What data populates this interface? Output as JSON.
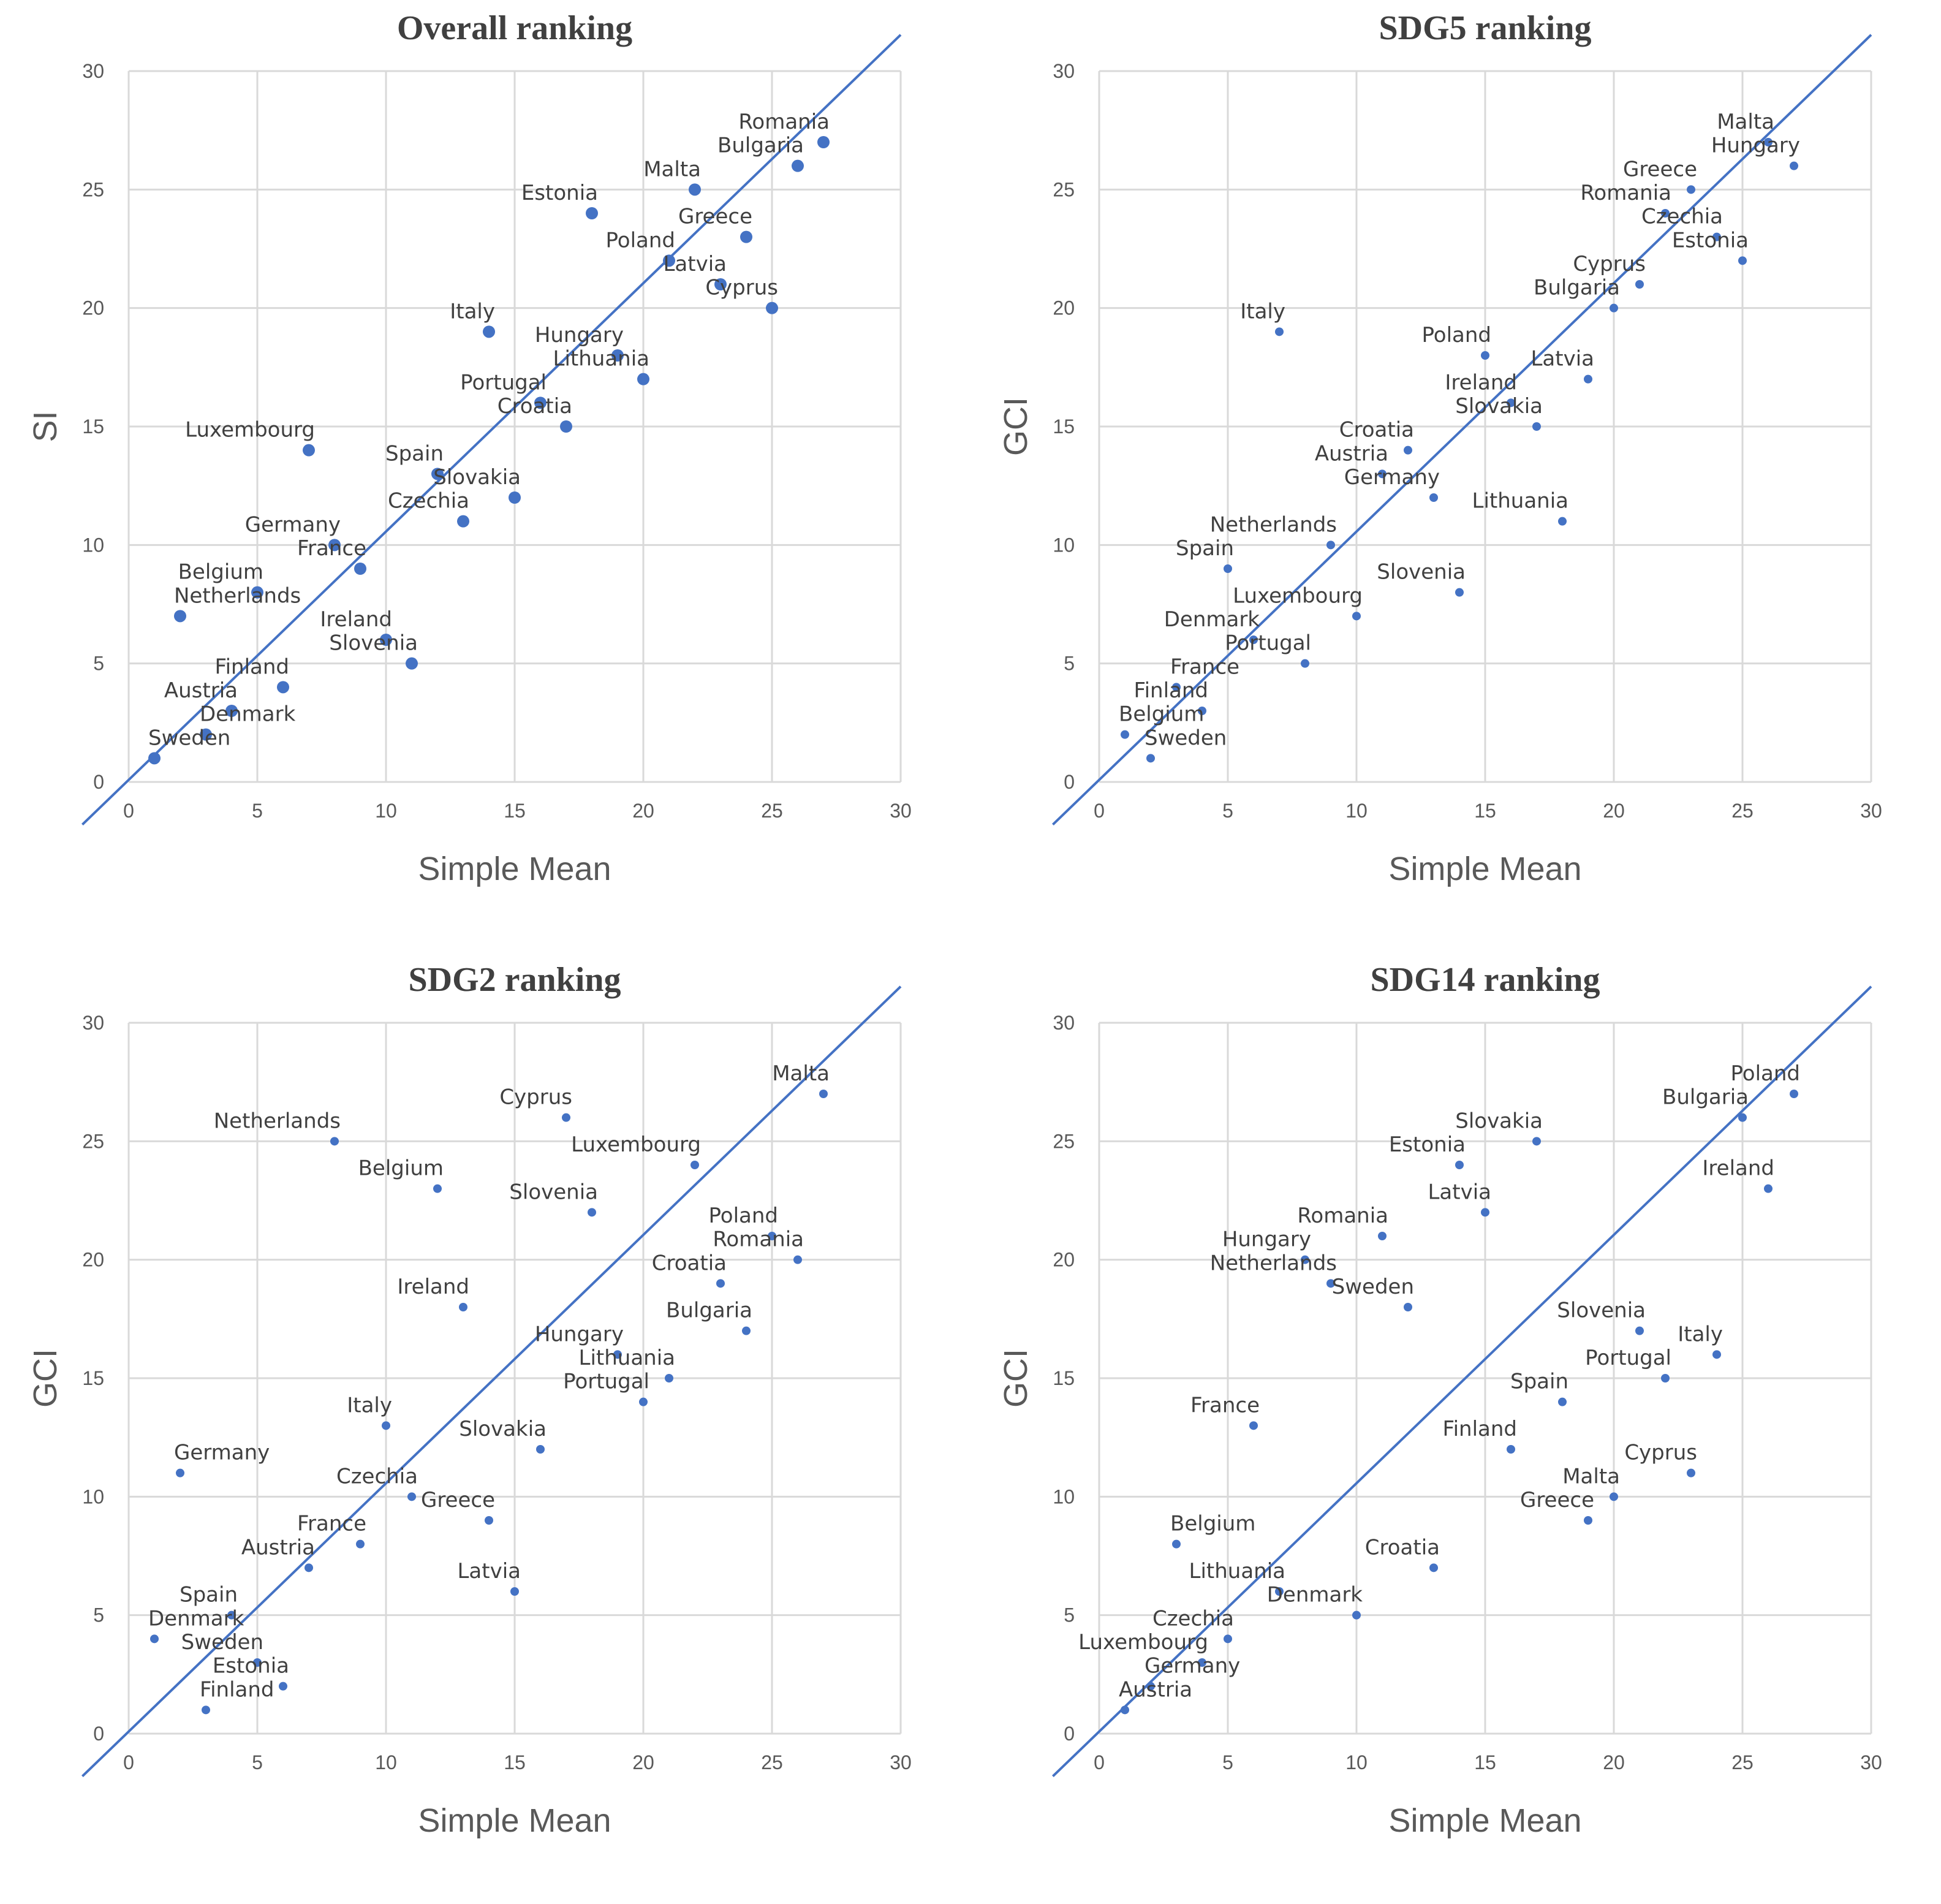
{
  "colors": {
    "point": "#4472c4",
    "line": "#4472c4",
    "grid": "#d9d9d9",
    "text": "#404040"
  },
  "chart_data": [
    {
      "type": "scatter",
      "title": "Overall ranking",
      "xlabel": "Simple Mean",
      "ylabel": "SI",
      "xlim": [
        0,
        30
      ],
      "ylim": [
        0,
        30
      ],
      "xticks": [
        "0",
        "5",
        "10",
        "15",
        "20",
        "25",
        "30"
      ],
      "yticks": [
        "0",
        "5",
        "10",
        "15",
        "20",
        "25",
        "30"
      ],
      "reference_line": "y = x",
      "points": [
        {
          "label": "Romania",
          "x": 27,
          "y": 27
        },
        {
          "label": "Bulgaria",
          "x": 26,
          "y": 26
        },
        {
          "label": "Malta",
          "x": 22,
          "y": 25
        },
        {
          "label": "Estonia",
          "x": 18,
          "y": 24
        },
        {
          "label": "Greece",
          "x": 24,
          "y": 23
        },
        {
          "label": "Poland",
          "x": 21,
          "y": 22
        },
        {
          "label": "Latvia",
          "x": 23,
          "y": 21
        },
        {
          "label": "Cyprus",
          "x": 25,
          "y": 20
        },
        {
          "label": "Italy",
          "x": 14,
          "y": 19
        },
        {
          "label": "Hungary",
          "x": 19,
          "y": 18
        },
        {
          "label": "Lithuania",
          "x": 20,
          "y": 17
        },
        {
          "label": "Portugal",
          "x": 16,
          "y": 16
        },
        {
          "label": "Croatia",
          "x": 17,
          "y": 15
        },
        {
          "label": "Luxembourg",
          "x": 7,
          "y": 14
        },
        {
          "label": "Spain",
          "x": 12,
          "y": 13
        },
        {
          "label": "Slovakia",
          "x": 15,
          "y": 12
        },
        {
          "label": "Czechia",
          "x": 13,
          "y": 11
        },
        {
          "label": "Germany",
          "x": 8,
          "y": 10
        },
        {
          "label": "France",
          "x": 9,
          "y": 9
        },
        {
          "label": "Belgium",
          "x": 5,
          "y": 8
        },
        {
          "label": "Netherlands",
          "x": 2,
          "y": 7
        },
        {
          "label": "Ireland",
          "x": 10,
          "y": 6
        },
        {
          "label": "Slovenia",
          "x": 11,
          "y": 5
        },
        {
          "label": "Finland",
          "x": 6,
          "y": 4
        },
        {
          "label": "Austria",
          "x": 4,
          "y": 3
        },
        {
          "label": "Denmark",
          "x": 3,
          "y": 2
        },
        {
          "label": "Sweden",
          "x": 1,
          "y": 1
        }
      ]
    },
    {
      "type": "scatter",
      "title": "SDG5 ranking",
      "xlabel": "Simple Mean",
      "ylabel": "GCI",
      "xlim": [
        0,
        30
      ],
      "ylim": [
        0,
        30
      ],
      "xticks": [
        "0",
        "5",
        "10",
        "15",
        "20",
        "25",
        "30"
      ],
      "yticks": [
        "0",
        "5",
        "10",
        "15",
        "20",
        "25",
        "30"
      ],
      "reference_line": "y = x",
      "points": [
        {
          "label": "Malta",
          "x": 26,
          "y": 27
        },
        {
          "label": "Hungary",
          "x": 27,
          "y": 26
        },
        {
          "label": "Greece",
          "x": 23,
          "y": 25
        },
        {
          "label": "Romania",
          "x": 22,
          "y": 24
        },
        {
          "label": "Czechia",
          "x": 24,
          "y": 23
        },
        {
          "label": "Estonia",
          "x": 25,
          "y": 22
        },
        {
          "label": "Cyprus",
          "x": 21,
          "y": 21
        },
        {
          "label": "Bulgaria",
          "x": 20,
          "y": 20
        },
        {
          "label": "Italy",
          "x": 7,
          "y": 19
        },
        {
          "label": "Poland",
          "x": 15,
          "y": 18
        },
        {
          "label": "Latvia",
          "x": 19,
          "y": 17
        },
        {
          "label": "Ireland",
          "x": 16,
          "y": 16
        },
        {
          "label": "Slovakia",
          "x": 17,
          "y": 15
        },
        {
          "label": "Croatia",
          "x": 12,
          "y": 14
        },
        {
          "label": "Austria",
          "x": 11,
          "y": 13
        },
        {
          "label": "Germany",
          "x": 13,
          "y": 12
        },
        {
          "label": "Lithuania",
          "x": 18,
          "y": 11
        },
        {
          "label": "Netherlands",
          "x": 9,
          "y": 10
        },
        {
          "label": "Spain",
          "x": 5,
          "y": 9
        },
        {
          "label": "Slovenia",
          "x": 14,
          "y": 8
        },
        {
          "label": "Luxembourg",
          "x": 10,
          "y": 7
        },
        {
          "label": "Denmark",
          "x": 6,
          "y": 6
        },
        {
          "label": "Portugal",
          "x": 8,
          "y": 5
        },
        {
          "label": "France",
          "x": 3,
          "y": 4
        },
        {
          "label": "Finland",
          "x": 4,
          "y": 3
        },
        {
          "label": "Belgium",
          "x": 1,
          "y": 2
        },
        {
          "label": "Sweden",
          "x": 2,
          "y": 1
        }
      ]
    },
    {
      "type": "scatter",
      "title": "SDG2 ranking",
      "xlabel": "Simple Mean",
      "ylabel": "GCI",
      "xlim": [
        0,
        30
      ],
      "ylim": [
        0,
        30
      ],
      "xticks": [
        "0",
        "5",
        "10",
        "15",
        "20",
        "25",
        "30"
      ],
      "yticks": [
        "0",
        "5",
        "10",
        "15",
        "20",
        "25",
        "30"
      ],
      "reference_line": "y = x",
      "points": [
        {
          "label": "Malta",
          "x": 27,
          "y": 27
        },
        {
          "label": "Cyprus",
          "x": 17,
          "y": 26
        },
        {
          "label": "Netherlands",
          "x": 8,
          "y": 25
        },
        {
          "label": "Luxembourg",
          "x": 22,
          "y": 24
        },
        {
          "label": "Belgium",
          "x": 12,
          "y": 23
        },
        {
          "label": "Slovenia",
          "x": 18,
          "y": 22
        },
        {
          "label": "Poland",
          "x": 25,
          "y": 21
        },
        {
          "label": "Romania",
          "x": 26,
          "y": 20
        },
        {
          "label": "Croatia",
          "x": 23,
          "y": 19
        },
        {
          "label": "Ireland",
          "x": 13,
          "y": 18
        },
        {
          "label": "Bulgaria",
          "x": 24,
          "y": 17
        },
        {
          "label": "Hungary",
          "x": 19,
          "y": 16
        },
        {
          "label": "Lithuania",
          "x": 21,
          "y": 15
        },
        {
          "label": "Portugal",
          "x": 20,
          "y": 14
        },
        {
          "label": "Italy",
          "x": 10,
          "y": 13
        },
        {
          "label": "Slovakia",
          "x": 16,
          "y": 12
        },
        {
          "label": "Germany",
          "x": 2,
          "y": 11
        },
        {
          "label": "Czechia",
          "x": 11,
          "y": 10
        },
        {
          "label": "Greece",
          "x": 14,
          "y": 9
        },
        {
          "label": "France",
          "x": 9,
          "y": 8
        },
        {
          "label": "Austria",
          "x": 7,
          "y": 7
        },
        {
          "label": "Latvia",
          "x": 15,
          "y": 6
        },
        {
          "label": "Spain",
          "x": 4,
          "y": 5
        },
        {
          "label": "Denmark",
          "x": 1,
          "y": 4
        },
        {
          "label": "Sweden",
          "x": 5,
          "y": 3
        },
        {
          "label": "Estonia",
          "x": 6,
          "y": 2
        },
        {
          "label": "Finland",
          "x": 3,
          "y": 1
        }
      ]
    },
    {
      "type": "scatter",
      "title": "SDG14 ranking",
      "xlabel": "Simple Mean",
      "ylabel": "GCI",
      "xlim": [
        0,
        30
      ],
      "ylim": [
        0,
        30
      ],
      "xticks": [
        "0",
        "5",
        "10",
        "15",
        "20",
        "25",
        "30"
      ],
      "yticks": [
        "0",
        "5",
        "10",
        "15",
        "20",
        "25",
        "30"
      ],
      "reference_line": "y = x",
      "points": [
        {
          "label": "Poland",
          "x": 27,
          "y": 27
        },
        {
          "label": "Bulgaria",
          "x": 25,
          "y": 26
        },
        {
          "label": "Slovakia",
          "x": 17,
          "y": 25
        },
        {
          "label": "Estonia",
          "x": 14,
          "y": 24
        },
        {
          "label": "Ireland",
          "x": 26,
          "y": 23
        },
        {
          "label": "Latvia",
          "x": 15,
          "y": 22
        },
        {
          "label": "Romania",
          "x": 11,
          "y": 21
        },
        {
          "label": "Hungary",
          "x": 8,
          "y": 20
        },
        {
          "label": "Netherlands",
          "x": 9,
          "y": 19
        },
        {
          "label": "Sweden",
          "x": 12,
          "y": 18
        },
        {
          "label": "Slovenia",
          "x": 21,
          "y": 17
        },
        {
          "label": "Italy",
          "x": 24,
          "y": 16
        },
        {
          "label": "Portugal",
          "x": 22,
          "y": 15
        },
        {
          "label": "Spain",
          "x": 18,
          "y": 14
        },
        {
          "label": "France",
          "x": 6,
          "y": 13
        },
        {
          "label": "Finland",
          "x": 16,
          "y": 12
        },
        {
          "label": "Cyprus",
          "x": 23,
          "y": 11
        },
        {
          "label": "Malta",
          "x": 20,
          "y": 10
        },
        {
          "label": "Greece",
          "x": 19,
          "y": 9
        },
        {
          "label": "Belgium",
          "x": 3,
          "y": 8
        },
        {
          "label": "Croatia",
          "x": 13,
          "y": 7
        },
        {
          "label": "Lithuania",
          "x": 7,
          "y": 6
        },
        {
          "label": "Denmark",
          "x": 10,
          "y": 5
        },
        {
          "label": "Czechia",
          "x": 5,
          "y": 4
        },
        {
          "label": "Luxembourg",
          "x": 4,
          "y": 3
        },
        {
          "label": "Germany",
          "x": 2,
          "y": 2
        },
        {
          "label": "Austria",
          "x": 1,
          "y": 1
        }
      ]
    }
  ]
}
